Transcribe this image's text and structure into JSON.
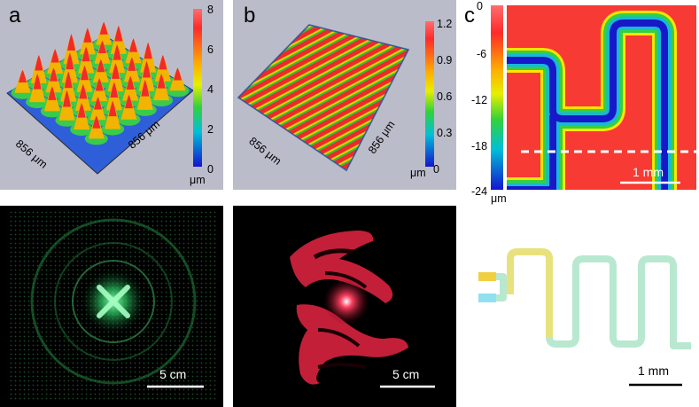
{
  "panels": {
    "a": {
      "letter": "a",
      "xlabel": "856 μm",
      "ylabel": "856 μm",
      "colorbar": {
        "ticks": [
          "8",
          "6",
          "4",
          "2",
          "0"
        ],
        "unit": "μm"
      }
    },
    "b": {
      "letter": "b",
      "xlabel": "856 μm",
      "ylabel": "856 μm",
      "colorbar": {
        "ticks": [
          "1.2",
          "0.9",
          "0.6",
          "0.3",
          "0"
        ],
        "unit": "μm"
      }
    },
    "c": {
      "letter": "c",
      "colorbar": {
        "ticks": [
          "0",
          "-6",
          "-12",
          "-18",
          "-24"
        ],
        "unit": "μm"
      },
      "scalebar": "1 mm"
    },
    "green_pattern": {
      "scalebar": "5 cm"
    },
    "red_dolphins": {
      "scalebar": "5 cm"
    },
    "micrograph": {
      "scalebar": "1 mm"
    }
  },
  "colors": {
    "panel_bg": "#b9b9c6",
    "colorbar_top": "#ff6e6e",
    "colorbar_bottom": "#1414d0",
    "green": "#3ad36b",
    "red": "#e8284a"
  }
}
